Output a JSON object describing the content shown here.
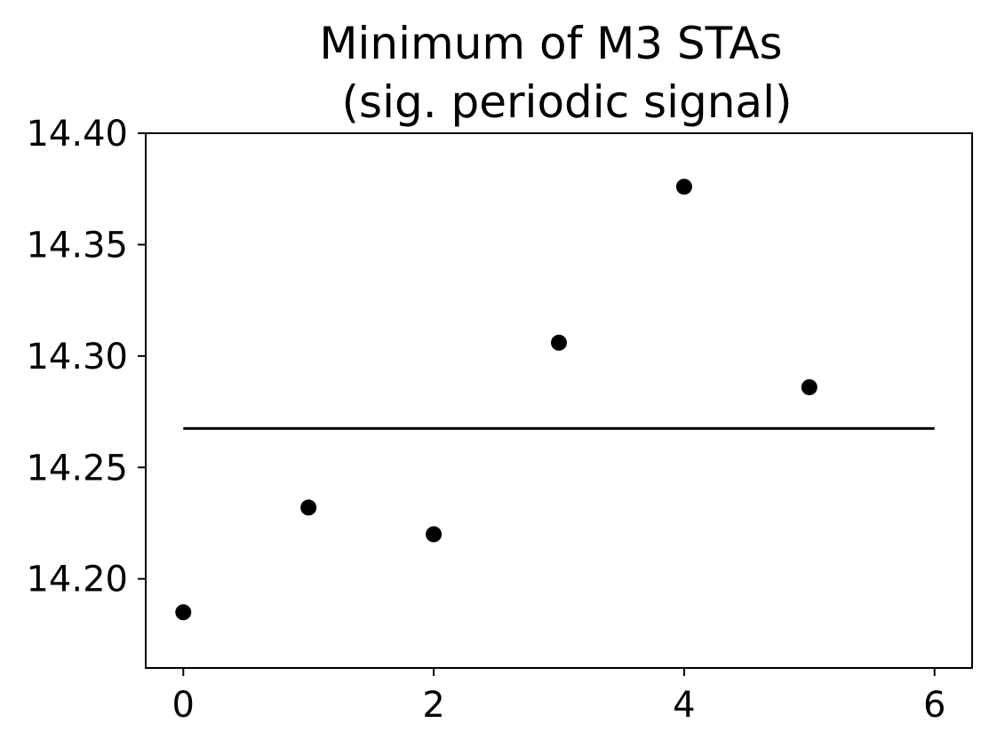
{
  "chart_data": {
    "type": "scatter",
    "title_lines": [
      "Minimum of M3 STAs",
      "(sig. periodic signal)"
    ],
    "xlabel": "",
    "ylabel": "",
    "xlim": [
      -0.3,
      6.3
    ],
    "ylim": [
      14.16,
      14.4
    ],
    "xticks": [
      0,
      2,
      4,
      6
    ],
    "xtick_labels": [
      "0",
      "2",
      "4",
      "6"
    ],
    "yticks": [
      14.2,
      14.25,
      14.3,
      14.35,
      14.4
    ],
    "ytick_labels": [
      "14.20",
      "14.25",
      "14.30",
      "14.35",
      "14.40"
    ],
    "grid": false,
    "legend": "none",
    "series": [
      {
        "kind": "scatter",
        "color": "#000000",
        "points": [
          {
            "x": 0,
            "y": 14.185
          },
          {
            "x": 1,
            "y": 14.232
          },
          {
            "x": 2,
            "y": 14.22
          },
          {
            "x": 3,
            "y": 14.306
          },
          {
            "x": 4,
            "y": 14.376
          },
          {
            "x": 5,
            "y": 14.286
          }
        ]
      },
      {
        "kind": "hline",
        "color": "#000000",
        "y": 14.2675,
        "x_start": 0,
        "x_end": 6
      }
    ]
  }
}
